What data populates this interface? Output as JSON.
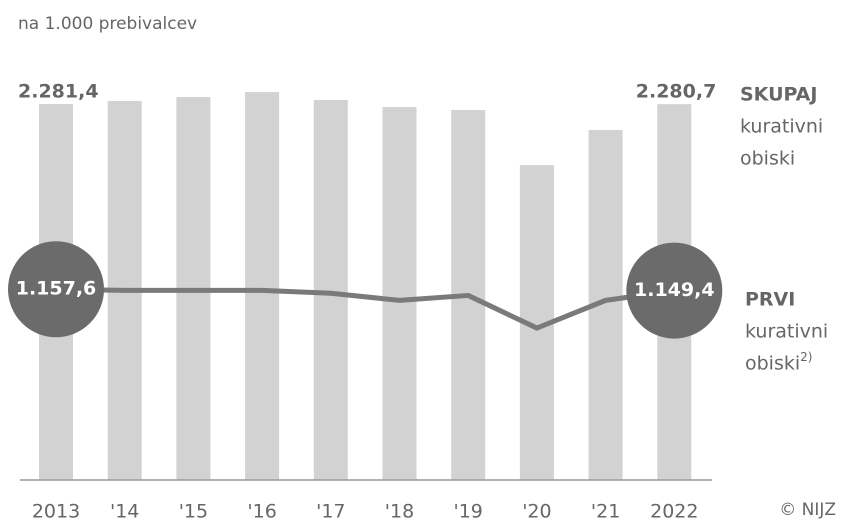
{
  "chart_data": {
    "type": "bar_line",
    "subtitle": "na 1.000 prebivalcev",
    "source": "© NIJZ",
    "categories": [
      "2013",
      "'14",
      "'15",
      "'16",
      "'17",
      "'18",
      "'19",
      "'20",
      "'21",
      "2022"
    ],
    "ylim": [
      0,
      2400
    ],
    "series": [
      {
        "name": "SKUPAJ",
        "legend_text": [
          "kurativni",
          "obiski"
        ],
        "kind": "bar",
        "color": "#d2d2d2",
        "values": [
          2281.4,
          2300,
          2324,
          2354,
          2306,
          2263,
          2245,
          1911,
          2124,
          2280.7
        ],
        "value_labels": [
          "2.281,4",
          null,
          null,
          null,
          null,
          null,
          null,
          null,
          null,
          "2.280,7"
        ]
      },
      {
        "name": "PRVI",
        "legend_text": [
          "kurativni",
          "obiski"
        ],
        "note_marker": "2)",
        "kind": "line",
        "color": "#7a7a7a",
        "marker_color": "#6b6b6b",
        "values": [
          1157.6,
          1151,
          1151,
          1151,
          1133,
          1090,
          1120,
          922,
          1090,
          1149.4
        ],
        "value_labels": [
          "1.157,6",
          null,
          null,
          null,
          null,
          null,
          null,
          null,
          null,
          "1.149,4"
        ]
      }
    ]
  }
}
